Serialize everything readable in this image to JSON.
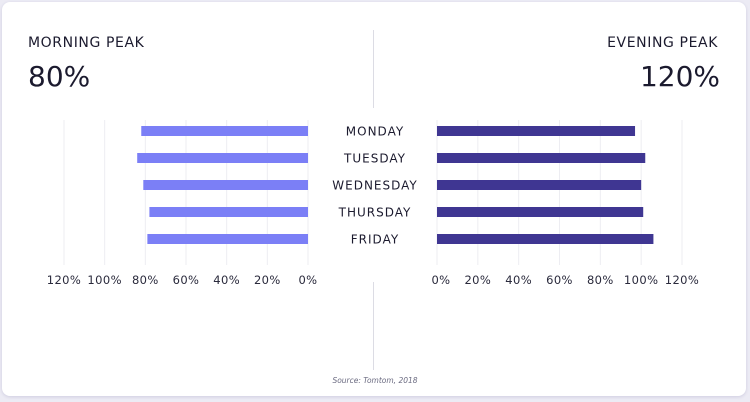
{
  "left_panel": {
    "title": "MORNING PEAK",
    "value": "80%"
  },
  "right_panel": {
    "title": "EVENING PEAK",
    "value": "120%"
  },
  "source": "Source: Tomtom, 2018",
  "colors": {
    "morning": "#7b7ff6",
    "evening": "#3f3692",
    "text": "#1b1a2e",
    "grid": "#ededf2"
  },
  "chart_data": [
    {
      "type": "bar",
      "orientation": "horizontal",
      "direction": "right-to-left",
      "title": "MORNING PEAK",
      "categories": [
        "MONDAY",
        "TUESDAY",
        "WEDNESDAY",
        "THURSDAY",
        "FRIDAY"
      ],
      "values": [
        82,
        84,
        81,
        78,
        79
      ],
      "xlim": [
        0,
        120
      ],
      "xticks": [
        "0%",
        "20%",
        "40%",
        "60%",
        "80%",
        "100%",
        "120%"
      ],
      "grid": true
    },
    {
      "type": "bar",
      "orientation": "horizontal",
      "direction": "left-to-right",
      "title": "EVENING PEAK",
      "categories": [
        "MONDAY",
        "TUESDAY",
        "WEDNESDAY",
        "THURSDAY",
        "FRIDAY"
      ],
      "values": [
        97,
        102,
        100,
        101,
        106
      ],
      "xlim": [
        0,
        120
      ],
      "xticks": [
        "0%",
        "20%",
        "40%",
        "60%",
        "80%",
        "100%",
        "120%"
      ],
      "grid": true
    }
  ]
}
